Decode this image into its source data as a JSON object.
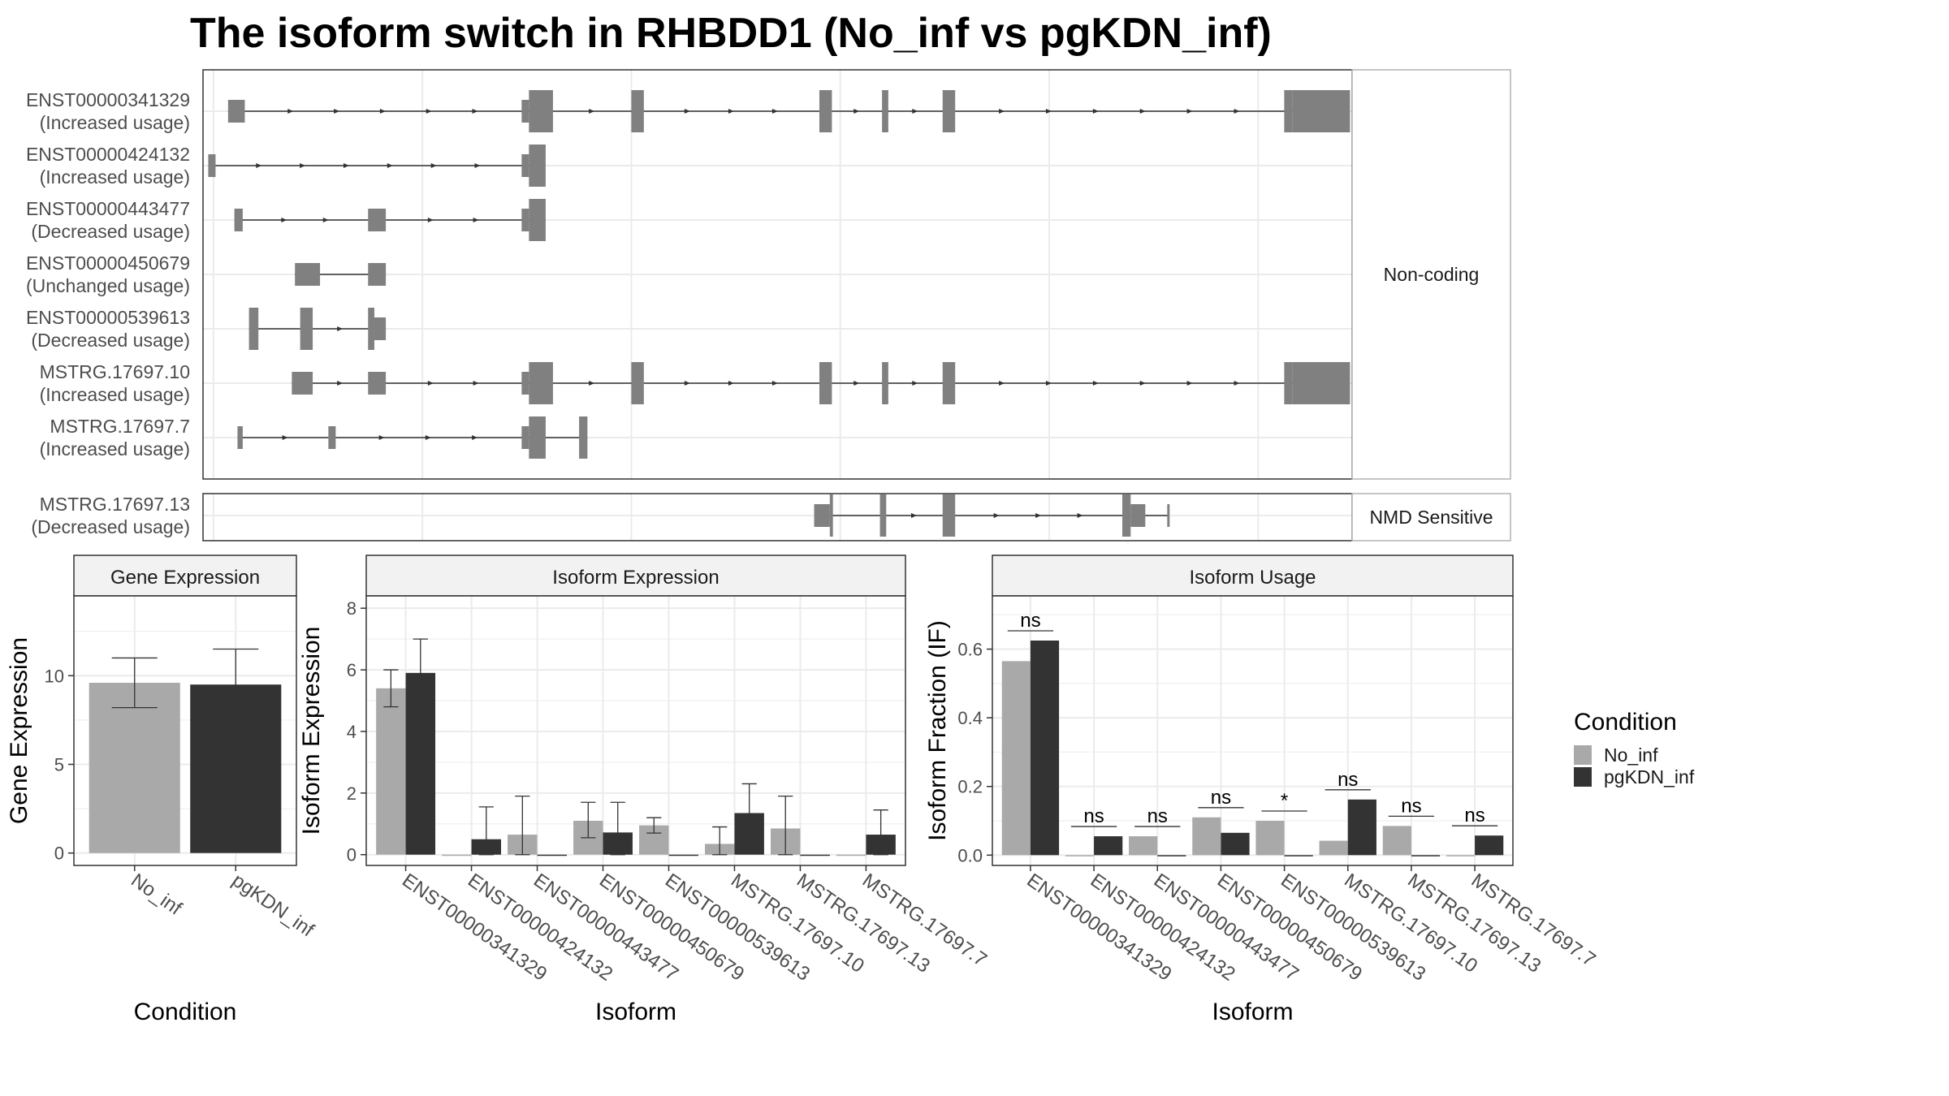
{
  "title": "The isoform switch in RHBDD1 (No_inf vs pgKDN_inf)",
  "colors": {
    "no_inf": "#a9a9a9",
    "pgkdn_inf": "#333333",
    "exon": "#808080",
    "strip": "#f2f2f2",
    "grid": "#ebebeb"
  },
  "chart_data": [
    {
      "type": "other",
      "panel": "transcript-structure",
      "groups": [
        {
          "label": "Non-coding",
          "tracks": [
            {
              "id": "ENST00000341329",
              "usage": "(Increased usage)",
              "exons": [
                [
                  1.4,
                  3.0,
                  "n"
                ],
                [
                  29.5,
                  30.2,
                  "n"
                ],
                [
                  30.2,
                  32.5,
                  "w"
                ],
                [
                  40.0,
                  41.2,
                  "w"
                ],
                [
                  58.0,
                  59.2,
                  "w"
                ],
                [
                  64.0,
                  64.6,
                  "w"
                ],
                [
                  69.8,
                  71.0,
                  "w"
                ],
                [
                  102.5,
                  103.3,
                  "w"
                ],
                [
                  103.3,
                  108.8,
                  "w"
                ]
              ]
            },
            {
              "id": "ENST00000424132",
              "usage": "(Increased usage)",
              "exons": [
                [
                  -0.5,
                  0.2,
                  "n"
                ],
                [
                  29.5,
                  30.2,
                  "n"
                ],
                [
                  30.2,
                  31.8,
                  "w"
                ]
              ]
            },
            {
              "id": "ENST00000443477",
              "usage": "(Decreased usage)",
              "exons": [
                [
                  2.0,
                  2.8,
                  "n"
                ],
                [
                  14.8,
                  16.5,
                  "n"
                ],
                [
                  29.5,
                  30.2,
                  "n"
                ],
                [
                  30.2,
                  31.8,
                  "w"
                ]
              ]
            },
            {
              "id": "ENST00000450679",
              "usage": "(Unchanged usage)",
              "exons": [
                [
                  7.8,
                  10.2,
                  "n"
                ],
                [
                  14.8,
                  16.5,
                  "n"
                ]
              ]
            },
            {
              "id": "ENST00000539613",
              "usage": "(Decreased usage)",
              "exons": [
                [
                  3.4,
                  4.3,
                  "w"
                ],
                [
                  8.3,
                  9.5,
                  "w"
                ],
                [
                  14.8,
                  15.4,
                  "w"
                ],
                [
                  15.4,
                  16.5,
                  "n"
                ]
              ]
            },
            {
              "id": "MSTRG.17697.10",
              "usage": "(Increased usage)",
              "exons": [
                [
                  7.5,
                  9.5,
                  "n"
                ],
                [
                  14.8,
                  16.5,
                  "n"
                ],
                [
                  29.5,
                  30.2,
                  "n"
                ],
                [
                  30.2,
                  32.5,
                  "w"
                ],
                [
                  40.0,
                  41.2,
                  "w"
                ],
                [
                  58.0,
                  59.2,
                  "w"
                ],
                [
                  64.0,
                  64.6,
                  "w"
                ],
                [
                  69.8,
                  71.0,
                  "w"
                ],
                [
                  102.5,
                  103.3,
                  "w"
                ],
                [
                  103.3,
                  108.8,
                  "w"
                ]
              ]
            },
            {
              "id": "MSTRG.17697.7",
              "usage": "(Increased usage)",
              "exons": [
                [
                  2.3,
                  2.8,
                  "n"
                ],
                [
                  11.0,
                  11.7,
                  "n"
                ],
                [
                  29.5,
                  30.2,
                  "n"
                ],
                [
                  30.2,
                  31.8,
                  "w"
                ],
                [
                  35.0,
                  35.8,
                  "w"
                ]
              ]
            }
          ]
        },
        {
          "label": "NMD Sensitive",
          "tracks": [
            {
              "id": "MSTRG.17697.13",
              "usage": "(Decreased usage)",
              "exons": [
                [
                  57.5,
                  59.0,
                  "n"
                ],
                [
                  59.0,
                  59.3,
                  "w"
                ],
                [
                  63.8,
                  64.4,
                  "w"
                ],
                [
                  69.8,
                  71.0,
                  "w"
                ],
                [
                  87.0,
                  87.8,
                  "w"
                ],
                [
                  87.8,
                  89.2,
                  "n"
                ],
                [
                  91.3,
                  91.5,
                  "n"
                ]
              ]
            }
          ]
        }
      ],
      "xlim": [
        -1,
        109
      ],
      "grid_x": [
        0,
        20,
        40,
        60,
        80,
        100
      ]
    },
    {
      "type": "bar",
      "panel": "gene-expression",
      "strip": "Gene Expression",
      "xlabel": "Condition",
      "ylabel": "Gene Expression",
      "categories": [
        "No_inf",
        "pgKDN_inf"
      ],
      "values": [
        9.6,
        9.5
      ],
      "errors": [
        [
          8.2,
          11.0
        ],
        [
          7.6,
          11.5
        ]
      ],
      "ylim": [
        -0.7,
        14.5
      ],
      "yticks": [
        0,
        5,
        10
      ],
      "gridlines_minor": [
        2.5,
        7.5,
        12.5
      ]
    },
    {
      "type": "bar",
      "panel": "isoform-expression",
      "strip": "Isoform Expression",
      "xlabel": "Isoform",
      "ylabel": "Isoform Expression",
      "categories": [
        "ENST00000341329",
        "ENST00000424132",
        "ENST00000443477",
        "ENST00000450679",
        "ENST00000539613",
        "MSTRG.17697.10",
        "MSTRG.17697.13",
        "MSTRG.17697.7"
      ],
      "series": [
        {
          "name": "No_inf",
          "values": [
            5.4,
            0.0,
            0.65,
            1.1,
            0.95,
            0.35,
            0.85,
            0.0
          ],
          "errors": [
            [
              4.8,
              6.0
            ],
            null,
            [
              0.0,
              1.9
            ],
            [
              0.55,
              1.7
            ],
            [
              0.7,
              1.2
            ],
            [
              0.0,
              0.9
            ],
            [
              0.0,
              1.9
            ],
            null
          ]
        },
        {
          "name": "pgKDN_inf",
          "values": [
            5.9,
            0.5,
            0.0,
            0.72,
            0.0,
            1.35,
            0.0,
            0.65
          ],
          "errors": [
            [
              4.8,
              7.0
            ],
            [
              0.0,
              1.55
            ],
            null,
            [
              0.0,
              1.7
            ],
            null,
            [
              0.45,
              2.3
            ],
            null,
            [
              0.0,
              1.45
            ]
          ]
        }
      ],
      "ylim": [
        -0.35,
        8.4
      ],
      "yticks": [
        0,
        2,
        4,
        6,
        8
      ],
      "gridlines_minor": [
        1,
        3,
        5,
        7
      ]
    },
    {
      "type": "bar",
      "panel": "isoform-usage",
      "strip": "Isoform Usage",
      "xlabel": "Isoform",
      "ylabel": "Isoform Fraction (IF)",
      "categories": [
        "ENST00000341329",
        "ENST00000424132",
        "ENST00000443477",
        "ENST00000450679",
        "ENST00000539613",
        "MSTRG.17697.10",
        "MSTRG.17697.13",
        "MSTRG.17697.7"
      ],
      "series": [
        {
          "name": "No_inf",
          "values": [
            0.565,
            0.0,
            0.055,
            0.11,
            0.1,
            0.042,
            0.085,
            0.0
          ]
        },
        {
          "name": "pgKDN_inf",
          "values": [
            0.625,
            0.055,
            0.0,
            0.065,
            0.0,
            0.162,
            0.0,
            0.057
          ]
        }
      ],
      "significance": [
        "ns",
        "ns",
        "ns",
        "ns",
        "*",
        "ns",
        "ns",
        "ns"
      ],
      "ylim": [
        -0.03,
        0.755
      ],
      "yticks": [
        0.0,
        0.2,
        0.4,
        0.6
      ],
      "yticklabels": [
        "0.0",
        "0.2",
        "0.4",
        "0.6"
      ],
      "gridlines_minor": [
        0.1,
        0.3,
        0.5,
        0.7
      ]
    }
  ],
  "legend": {
    "title": "Condition",
    "entries": [
      {
        "label": "No_inf",
        "color": "#a9a9a9"
      },
      {
        "label": "pgKDN_inf",
        "color": "#333333"
      }
    ]
  }
}
